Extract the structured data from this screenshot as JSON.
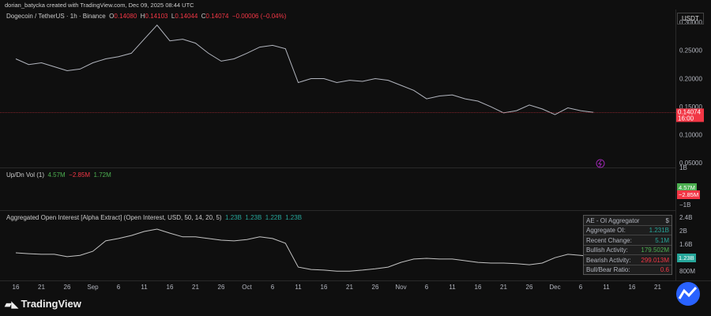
{
  "header": {
    "credit": "dorian_batycka created with TradingView.com, Dec 09, 2025 08:44 UTC",
    "currency": "USDT"
  },
  "chart_data": [
    {
      "type": "line",
      "title": "Dogecoin / TetherUS · 1h · Binance",
      "ohlc": [
        {
          "label": "O",
          "value": "0.14080"
        },
        {
          "label": "H",
          "value": "0.14103"
        },
        {
          "label": "L",
          "value": "0.14044"
        },
        {
          "label": "C",
          "value": "0.14074"
        }
      ],
      "change": "−0.00006 (−0.04%)",
      "categories": [
        "16",
        null,
        "21",
        null,
        "26",
        null,
        "Sep",
        null,
        "6",
        null,
        "11",
        null,
        "16",
        null,
        "21",
        null,
        "26",
        null,
        "Oct",
        null,
        "6",
        null,
        "11",
        null,
        "16",
        null,
        "21",
        null,
        "26",
        null,
        "Nov",
        null,
        "6",
        null,
        "11",
        null,
        "16",
        null,
        "21",
        null,
        "26",
        null,
        "Dec",
        null,
        "6",
        null,
        "11",
        null,
        "16",
        null,
        "21",
        null
      ],
      "values": [
        0.236,
        0.226,
        0.229,
        0.222,
        0.215,
        0.218,
        0.229,
        0.236,
        0.24,
        0.246,
        0.271,
        0.296,
        0.268,
        0.271,
        0.264,
        0.246,
        0.232,
        0.236,
        0.246,
        0.257,
        0.26,
        0.254,
        0.194,
        0.201,
        0.201,
        0.194,
        0.198,
        0.196,
        0.201,
        0.198,
        0.189,
        0.18,
        0.165,
        0.17,
        0.172,
        0.165,
        0.161,
        0.151,
        0.14,
        0.144,
        0.154,
        0.147,
        0.137,
        0.149,
        0.144,
        0.141,
        null,
        null,
        null,
        null,
        null,
        null
      ],
      "color": "#b2b5be",
      "ylim": [
        0.043,
        0.321
      ],
      "yticks": [
        {
          "value": 0.05,
          "label": "0.05000"
        },
        {
          "value": 0.1,
          "label": "0.10000"
        },
        {
          "value": 0.15,
          "label": "0.15000"
        },
        {
          "value": 0.2,
          "label": "0.20000"
        },
        {
          "value": 0.25,
          "label": "0.25000"
        },
        {
          "value": 0.3,
          "label": "0.30000"
        }
      ],
      "last_price": 0.14074,
      "countdown": "16:00",
      "grid": false
    },
    {
      "type": "volume",
      "title": "Up/Dn Vol (1)",
      "legend": [
        "4.57M",
        "−2.85M",
        "1.72M"
      ],
      "ylim": [
        -1.08,
        1.08
      ],
      "yticks": [
        {
          "value": 1,
          "label": "1B"
        },
        {
          "value": -1,
          "label": "−1B"
        }
      ]
    },
    {
      "type": "line",
      "title": "Aggregated Open Interest [Alpha Extract] (Open Interest, USD, 50, 14, 20, 5)",
      "legend": [
        "1.23B",
        "1.23B",
        "1.22B",
        "1.23B"
      ],
      "values": [
        1.365,
        1.34,
        1.32,
        1.32,
        1.25,
        1.29,
        1.41,
        1.72,
        1.79,
        1.88,
        2.0,
        2.07,
        1.95,
        1.84,
        1.84,
        1.79,
        1.74,
        1.72,
        1.76,
        1.84,
        1.79,
        1.65,
        0.94,
        0.87,
        0.85,
        0.82,
        0.82,
        0.85,
        0.89,
        0.94,
        1.08,
        1.18,
        1.2,
        1.18,
        1.18,
        1.13,
        1.08,
        1.06,
        1.06,
        1.04,
        1.01,
        1.06,
        1.22,
        1.32,
        1.29,
        1.25,
        null,
        null,
        null,
        null,
        null,
        null
      ],
      "color": "#c4c4c4",
      "ylim": [
        0.66,
        2.54
      ],
      "yticks": [
        {
          "value": 2.4,
          "label": "2.4B"
        },
        {
          "value": 2,
          "label": "2B"
        },
        {
          "value": 1.6,
          "label": "1.6B"
        },
        {
          "value": 1.2,
          "label": "1.2B"
        },
        {
          "value": 0.8,
          "label": "800M"
        }
      ],
      "table": {
        "title": "AE - OI Aggregator",
        "currency": "$",
        "rows": [
          [
            "Aggregate OI:",
            "1.231B"
          ],
          [
            "Recent Change:",
            "5.1M"
          ],
          [
            "Bullish Activity:",
            "179.502M"
          ],
          [
            "Bearish Activity:",
            "299.013M"
          ],
          [
            "Bull/Bear Ratio:",
            "0.6"
          ]
        ]
      }
    }
  ],
  "footer": {
    "brand": "TradingView"
  }
}
